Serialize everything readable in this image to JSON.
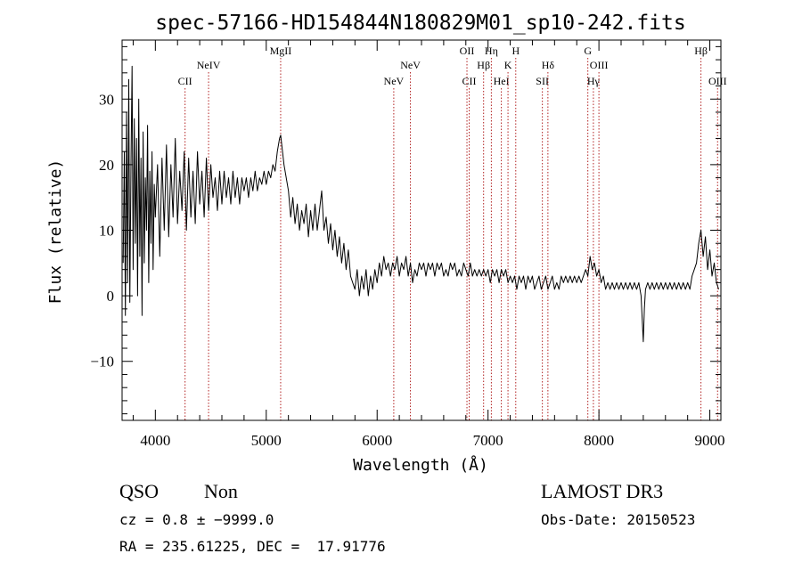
{
  "chart_data": {
    "type": "line",
    "title": "spec-57166-HD154844N180829M01_sp10-242.fits",
    "xlabel": "Wavelength (Å)",
    "ylabel": "Flux (relative)",
    "xlim": [
      3700,
      9100
    ],
    "ylim": [
      -19,
      39
    ],
    "xticks": [
      4000,
      5000,
      6000,
      7000,
      8000,
      9000
    ],
    "yticks": [
      -10,
      0,
      10,
      20,
      30
    ],
    "xtick_labels": [
      "4000",
      "5000",
      "6000",
      "7000",
      "8000",
      "9000"
    ],
    "ytick_labels": [
      "−10",
      "0",
      "10",
      "20",
      "30"
    ],
    "grid": false,
    "line_color": "#000000",
    "marker_color": "#b22222",
    "line_markers": [
      {
        "label": "CII",
        "x": 4268,
        "row": 2
      },
      {
        "label": "NeIV",
        "x": 4480,
        "row": 1
      },
      {
        "label": "MgII",
        "x": 5130,
        "row": 0
      },
      {
        "label": "NeV",
        "x": 6150,
        "row": 2
      },
      {
        "label": "NeV",
        "x": 6300,
        "row": 1
      },
      {
        "label": "OII",
        "x": 6810,
        "row": 0
      },
      {
        "label": "CII",
        "x": 6830,
        "row": 2
      },
      {
        "label": "Hβ",
        "x": 6960,
        "row": 1
      },
      {
        "label": "Hη",
        "x": 7030,
        "row": 0
      },
      {
        "label": "HeI",
        "x": 7120,
        "row": 2
      },
      {
        "label": "K",
        "x": 7180,
        "row": 1
      },
      {
        "label": "H",
        "x": 7250,
        "row": 0
      },
      {
        "label": "SII",
        "x": 7490,
        "row": 2
      },
      {
        "label": "Hδ",
        "x": 7540,
        "row": 1
      },
      {
        "label": "G",
        "x": 7900,
        "row": 0
      },
      {
        "label": "Hγ",
        "x": 7950,
        "row": 2
      },
      {
        "label": "OIII",
        "x": 8000,
        "row": 1
      },
      {
        "label": "Hβ",
        "x": 8920,
        "row": 0
      },
      {
        "label": "OIII",
        "x": 9070,
        "row": 2
      }
    ],
    "series": [
      {
        "points": [
          [
            3710,
            5
          ],
          [
            3720,
            22
          ],
          [
            3730,
            -3
          ],
          [
            3740,
            28
          ],
          [
            3750,
            2
          ],
          [
            3760,
            33
          ],
          [
            3770,
            -1
          ],
          [
            3780,
            20
          ],
          [
            3790,
            35
          ],
          [
            3800,
            4
          ],
          [
            3810,
            27
          ],
          [
            3820,
            8
          ],
          [
            3830,
            24
          ],
          [
            3840,
            0
          ],
          [
            3850,
            30
          ],
          [
            3860,
            6
          ],
          [
            3870,
            21
          ],
          [
            3880,
            -3
          ],
          [
            3890,
            25
          ],
          [
            3900,
            5
          ],
          [
            3910,
            18
          ],
          [
            3920,
            10
          ],
          [
            3930,
            26
          ],
          [
            3940,
            2
          ],
          [
            3950,
            19
          ],
          [
            3960,
            8
          ],
          [
            3970,
            22
          ],
          [
            3980,
            4
          ],
          [
            3990,
            17
          ],
          [
            4000,
            12
          ],
          [
            4020,
            20
          ],
          [
            4040,
            6
          ],
          [
            4060,
            21
          ],
          [
            4080,
            10
          ],
          [
            4100,
            23
          ],
          [
            4120,
            9
          ],
          [
            4140,
            20
          ],
          [
            4160,
            12
          ],
          [
            4180,
            24
          ],
          [
            4200,
            11
          ],
          [
            4220,
            19
          ],
          [
            4240,
            13
          ],
          [
            4260,
            22
          ],
          [
            4280,
            10
          ],
          [
            4300,
            21
          ],
          [
            4320,
            12
          ],
          [
            4340,
            19
          ],
          [
            4360,
            11
          ],
          [
            4380,
            22
          ],
          [
            4400,
            14
          ],
          [
            4420,
            19
          ],
          [
            4440,
            12
          ],
          [
            4460,
            21
          ],
          [
            4480,
            13
          ],
          [
            4500,
            20
          ],
          [
            4520,
            15
          ],
          [
            4540,
            18
          ],
          [
            4560,
            13
          ],
          [
            4580,
            19
          ],
          [
            4600,
            14
          ],
          [
            4620,
            19
          ],
          [
            4640,
            15
          ],
          [
            4660,
            18
          ],
          [
            4680,
            14
          ],
          [
            4700,
            19
          ],
          [
            4720,
            15
          ],
          [
            4740,
            18
          ],
          [
            4760,
            14
          ],
          [
            4780,
            18
          ],
          [
            4800,
            16
          ],
          [
            4820,
            18
          ],
          [
            4840,
            15
          ],
          [
            4860,
            18
          ],
          [
            4880,
            16
          ],
          [
            4900,
            19
          ],
          [
            4920,
            16
          ],
          [
            4940,
            18
          ],
          [
            4960,
            17
          ],
          [
            4980,
            19
          ],
          [
            5000,
            17
          ],
          [
            5020,
            19
          ],
          [
            5040,
            18
          ],
          [
            5060,
            20
          ],
          [
            5080,
            19
          ],
          [
            5100,
            22
          ],
          [
            5120,
            24
          ],
          [
            5130,
            24.5
          ],
          [
            5140,
            23
          ],
          [
            5160,
            20
          ],
          [
            5180,
            18
          ],
          [
            5200,
            16
          ],
          [
            5220,
            12
          ],
          [
            5240,
            15
          ],
          [
            5260,
            11
          ],
          [
            5280,
            14
          ],
          [
            5300,
            10
          ],
          [
            5320,
            13
          ],
          [
            5340,
            11
          ],
          [
            5360,
            14
          ],
          [
            5380,
            9
          ],
          [
            5400,
            13
          ],
          [
            5420,
            10
          ],
          [
            5440,
            14
          ],
          [
            5460,
            10
          ],
          [
            5480,
            13
          ],
          [
            5500,
            16
          ],
          [
            5520,
            10
          ],
          [
            5540,
            12
          ],
          [
            5560,
            8
          ],
          [
            5580,
            11
          ],
          [
            5600,
            7
          ],
          [
            5620,
            10
          ],
          [
            5640,
            6
          ],
          [
            5660,
            9
          ],
          [
            5680,
            5
          ],
          [
            5700,
            8
          ],
          [
            5720,
            4
          ],
          [
            5740,
            7
          ],
          [
            5760,
            3
          ],
          [
            5780,
            2
          ],
          [
            5800,
            1
          ],
          [
            5820,
            4
          ],
          [
            5840,
            0
          ],
          [
            5860,
            3
          ],
          [
            5880,
            1
          ],
          [
            5900,
            4
          ],
          [
            5920,
            0
          ],
          [
            5940,
            3
          ],
          [
            5960,
            1
          ],
          [
            5980,
            4
          ],
          [
            6000,
            2
          ],
          [
            6020,
            5
          ],
          [
            6040,
            3
          ],
          [
            6060,
            6
          ],
          [
            6080,
            4
          ],
          [
            6100,
            5
          ],
          [
            6120,
            3
          ],
          [
            6140,
            5
          ],
          [
            6160,
            4
          ],
          [
            6180,
            6
          ],
          [
            6200,
            3
          ],
          [
            6220,
            5
          ],
          [
            6240,
            4
          ],
          [
            6260,
            6
          ],
          [
            6280,
            3
          ],
          [
            6300,
            5
          ],
          [
            6320,
            2
          ],
          [
            6340,
            4
          ],
          [
            6360,
            3
          ],
          [
            6380,
            5
          ],
          [
            6400,
            4
          ],
          [
            6420,
            5
          ],
          [
            6440,
            3
          ],
          [
            6460,
            5
          ],
          [
            6480,
            4
          ],
          [
            6500,
            5
          ],
          [
            6520,
            3
          ],
          [
            6540,
            5
          ],
          [
            6560,
            4
          ],
          [
            6580,
            5
          ],
          [
            6600,
            3
          ],
          [
            6620,
            4
          ],
          [
            6640,
            3
          ],
          [
            6660,
            5
          ],
          [
            6680,
            4
          ],
          [
            6700,
            5
          ],
          [
            6720,
            3
          ],
          [
            6740,
            4
          ],
          [
            6760,
            3
          ],
          [
            6780,
            5
          ],
          [
            6800,
            4
          ],
          [
            6820,
            3
          ],
          [
            6840,
            5
          ],
          [
            6860,
            3
          ],
          [
            6880,
            4
          ],
          [
            6900,
            3
          ],
          [
            6920,
            4
          ],
          [
            6940,
            3
          ],
          [
            6960,
            4
          ],
          [
            6980,
            3
          ],
          [
            7000,
            4
          ],
          [
            7020,
            2
          ],
          [
            7040,
            4
          ],
          [
            7060,
            3
          ],
          [
            7080,
            4
          ],
          [
            7100,
            2
          ],
          [
            7120,
            4
          ],
          [
            7140,
            3
          ],
          [
            7160,
            4
          ],
          [
            7180,
            2
          ],
          [
            7200,
            3
          ],
          [
            7220,
            2
          ],
          [
            7240,
            3
          ],
          [
            7260,
            1
          ],
          [
            7280,
            3
          ],
          [
            7300,
            2
          ],
          [
            7320,
            3
          ],
          [
            7340,
            1
          ],
          [
            7360,
            3
          ],
          [
            7380,
            2
          ],
          [
            7400,
            3
          ],
          [
            7420,
            1
          ],
          [
            7440,
            2
          ],
          [
            7460,
            3
          ],
          [
            7480,
            1
          ],
          [
            7500,
            2
          ],
          [
            7520,
            3
          ],
          [
            7540,
            1
          ],
          [
            7560,
            2
          ],
          [
            7580,
            3
          ],
          [
            7600,
            1
          ],
          [
            7620,
            2
          ],
          [
            7640,
            1
          ],
          [
            7660,
            3
          ],
          [
            7680,
            2
          ],
          [
            7700,
            3
          ],
          [
            7720,
            2
          ],
          [
            7740,
            3
          ],
          [
            7760,
            2
          ],
          [
            7780,
            3
          ],
          [
            7800,
            2
          ],
          [
            7820,
            3
          ],
          [
            7840,
            2
          ],
          [
            7860,
            3
          ],
          [
            7880,
            4
          ],
          [
            7900,
            3
          ],
          [
            7920,
            6
          ],
          [
            7940,
            4
          ],
          [
            7960,
            5
          ],
          [
            7980,
            3
          ],
          [
            8000,
            4
          ],
          [
            8020,
            2
          ],
          [
            8040,
            3
          ],
          [
            8060,
            1
          ],
          [
            8080,
            2
          ],
          [
            8100,
            1
          ],
          [
            8120,
            2
          ],
          [
            8140,
            1
          ],
          [
            8160,
            2
          ],
          [
            8180,
            1
          ],
          [
            8200,
            2
          ],
          [
            8220,
            1
          ],
          [
            8240,
            2
          ],
          [
            8260,
            1
          ],
          [
            8280,
            2
          ],
          [
            8300,
            1
          ],
          [
            8320,
            2
          ],
          [
            8340,
            1
          ],
          [
            8360,
            2
          ],
          [
            8380,
            0
          ],
          [
            8400,
            -7
          ],
          [
            8410,
            -2
          ],
          [
            8420,
            1
          ],
          [
            8440,
            2
          ],
          [
            8460,
            1
          ],
          [
            8480,
            2
          ],
          [
            8500,
            1
          ],
          [
            8520,
            2
          ],
          [
            8540,
            1
          ],
          [
            8560,
            2
          ],
          [
            8580,
            1
          ],
          [
            8600,
            2
          ],
          [
            8620,
            1
          ],
          [
            8640,
            2
          ],
          [
            8660,
            1
          ],
          [
            8680,
            2
          ],
          [
            8700,
            1
          ],
          [
            8720,
            2
          ],
          [
            8740,
            1
          ],
          [
            8760,
            2
          ],
          [
            8780,
            1
          ],
          [
            8800,
            2
          ],
          [
            8820,
            1
          ],
          [
            8840,
            3
          ],
          [
            8860,
            4
          ],
          [
            8880,
            5
          ],
          [
            8900,
            8
          ],
          [
            8920,
            10
          ],
          [
            8940,
            6
          ],
          [
            8960,
            9
          ],
          [
            8980,
            4
          ],
          [
            9000,
            7
          ],
          [
            9020,
            3
          ],
          [
            9040,
            5
          ],
          [
            9060,
            2
          ],
          [
            9080,
            1
          ]
        ]
      }
    ]
  },
  "info": {
    "object_class": "QSO",
    "subclass": "Non",
    "survey": "LAMOST DR3",
    "redshift_line": "cz = 0.8 ± −9999.0",
    "obs_date": "Obs-Date: 20150523",
    "coords": "RA = 235.61225, DEC =  17.91776"
  }
}
